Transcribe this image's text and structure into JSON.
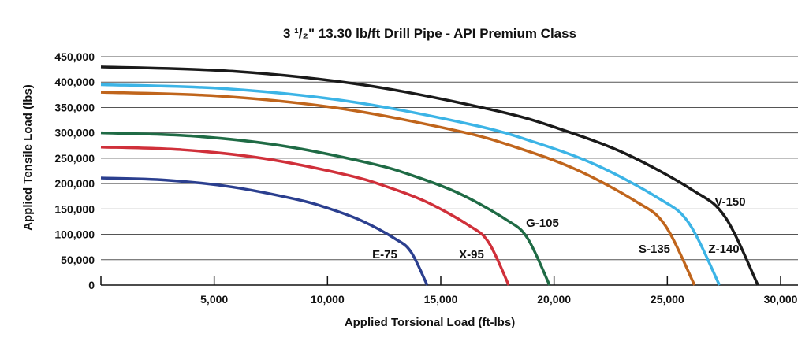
{
  "chart_data": {
    "type": "line",
    "title": "3 ¹/₂\" 13.30 lb/ft Drill Pipe - API Premium Class",
    "x_label": "Applied Torsional Load (ft-lbs)",
    "y_label": "Applied Tensile Load (lbs)",
    "xlim": [
      0,
      30000
    ],
    "xticks": [
      {
        "value": 5000,
        "label": "5,000"
      },
      {
        "value": 10000,
        "label": "10,000"
      },
      {
        "value": 15000,
        "label": "15,000"
      },
      {
        "value": 20000,
        "label": "20,000"
      },
      {
        "value": 25000,
        "label": "25,000"
      },
      {
        "value": 30000,
        "label": "30,000"
      }
    ],
    "ylim": [
      0,
      450000
    ],
    "yticks": [
      0,
      {
        "value": 50000,
        "label": "50,000"
      },
      {
        "value": 100000,
        "label": "100,000"
      },
      {
        "value": 150000,
        "label": "150,000"
      },
      {
        "value": 200000,
        "label": "200,000"
      },
      {
        "value": 250000,
        "label": "250,000"
      },
      {
        "value": 300000,
        "label": "300,000"
      },
      {
        "value": 350000,
        "label": "350,000"
      },
      {
        "value": 400000,
        "label": "400,000"
      },
      {
        "value": 450000,
        "label": "450,000"
      }
    ],
    "grid": true,
    "series": [
      {
        "name": "E-75",
        "color": "#2b3f8f",
        "x": [
          0,
          2880,
          5760,
          8640,
          10080,
          11520,
          12960,
          13680,
          14400
        ],
        "values": [
          211000,
          206800,
          193500,
          168800,
          150700,
          126600,
          92000,
          65800,
          0
        ]
      },
      {
        "name": "X-95",
        "color": "#d0303a",
        "x": [
          0,
          3600,
          7200,
          10800,
          12600,
          14400,
          16200,
          17100,
          18000
        ],
        "values": [
          272000,
          266600,
          249400,
          217600,
          194200,
          163200,
          118600,
          84900,
          0
        ]
      },
      {
        "name": "G-105",
        "color": "#1f6b45",
        "x": [
          0,
          3960,
          7920,
          11880,
          13860,
          15840,
          17820,
          18810,
          19800
        ],
        "values": [
          300000,
          294000,
          275100,
          240000,
          214200,
          180000,
          130800,
          93600,
          0
        ]
      },
      {
        "name": "S-135",
        "color": "#c0651c",
        "x": [
          0,
          5240,
          10480,
          15720,
          18340,
          20960,
          23580,
          24890,
          26200
        ],
        "values": [
          380000,
          372400,
          348500,
          304000,
          271300,
          228000,
          165700,
          118600,
          0
        ]
      },
      {
        "name": "Z-140",
        "color": "#3cb4e6",
        "x": [
          0,
          5460,
          10920,
          16380,
          19110,
          21840,
          24570,
          25935,
          27300
        ],
        "values": [
          395000,
          387100,
          362200,
          316000,
          282000,
          237000,
          172200,
          123200,
          0
        ]
      },
      {
        "name": "V-150",
        "color": "#1a1a1a",
        "x": [
          0,
          5800,
          11600,
          17400,
          20300,
          23200,
          26100,
          27550,
          29000
        ],
        "values": [
          430000,
          421400,
          394300,
          344000,
          307000,
          258000,
          187500,
          134200,
          0
        ]
      }
    ]
  }
}
